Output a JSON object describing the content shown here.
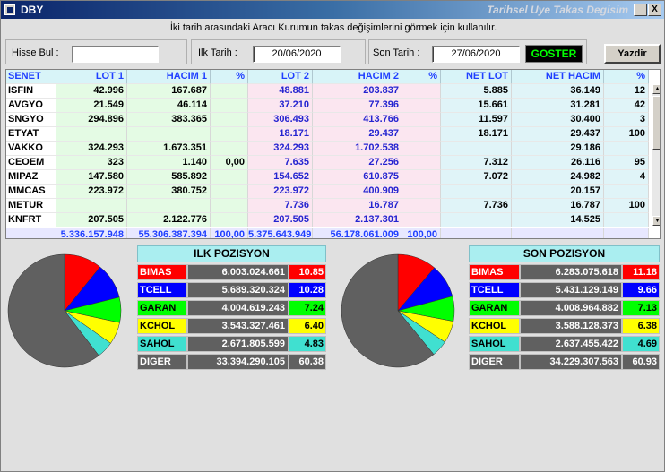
{
  "window": {
    "title": "DBY",
    "subtitle": "Tarihsel Uye Takas Degisim",
    "min_glyph": "_",
    "close_glyph": "X"
  },
  "instruction": "İki tarih arasındaki  Aracı Kurumun takas değişimlerini görmek için kullanılır.",
  "toolbar": {
    "hisse_label": "Hisse Bul :",
    "hisse_value": "",
    "ilk_label": "Ilk Tarih :",
    "ilk_value": "20/06/2020",
    "son_label": "Son Tarih :",
    "son_value": "27/06/2020",
    "goster_label": "GOSTER",
    "yazdir_label": "Yazdir"
  },
  "grid": {
    "headers": [
      "SENET",
      "LOT 1",
      "HACIM 1",
      "%",
      "LOT 2",
      "HACIM 2",
      "%",
      "NET LOT",
      "NET HACIM",
      "%"
    ],
    "rows": [
      [
        "ISFIN",
        "42.996",
        "167.687",
        "",
        "48.881",
        "203.837",
        "",
        "5.885",
        "36.149",
        "12"
      ],
      [
        "AVGYO",
        "21.549",
        "46.114",
        "",
        "37.210",
        "77.396",
        "",
        "15.661",
        "31.281",
        "42"
      ],
      [
        "SNGYO",
        "294.896",
        "383.365",
        "",
        "306.493",
        "413.766",
        "",
        "11.597",
        "30.400",
        "3"
      ],
      [
        "ETYAT",
        "",
        "",
        "",
        "18.171",
        "29.437",
        "",
        "18.171",
        "29.437",
        "100"
      ],
      [
        "VAKKO",
        "324.293",
        "1.673.351",
        "",
        "324.293",
        "1.702.538",
        "",
        "",
        "29.186",
        ""
      ],
      [
        "CEOEM",
        "323",
        "1.140",
        "0,00",
        "7.635",
        "27.256",
        "",
        "7.312",
        "26.116",
        "95"
      ],
      [
        "MIPAZ",
        "147.580",
        "585.892",
        "",
        "154.652",
        "610.875",
        "",
        "7.072",
        "24.982",
        "4"
      ],
      [
        "MMCAS",
        "223.972",
        "380.752",
        "",
        "223.972",
        "400.909",
        "",
        "",
        "20.157",
        ""
      ],
      [
        "METUR",
        "",
        "",
        "",
        "7.736",
        "16.787",
        "",
        "7.736",
        "16.787",
        "100"
      ],
      [
        "KNFRT",
        "207.505",
        "2.122.776",
        "",
        "207.505",
        "2.137.301",
        "",
        "",
        "14.525",
        ""
      ]
    ],
    "totals": [
      "",
      "5.336.157.948",
      "55.306.387.394",
      "100,00",
      "5.375.643.949",
      "56.178.061.009",
      "100,00",
      "",
      "",
      ""
    ]
  },
  "ilk_pozisyon": {
    "title": "ILK POZISYON",
    "rows": [
      {
        "name": "BIMAS",
        "value": "6.003.024.661",
        "pct": "10.85",
        "pct_num": 10.85,
        "color": "#ff0000",
        "text": "#ffffff"
      },
      {
        "name": "TCELL",
        "value": "5.689.320.324",
        "pct": "10.28",
        "pct_num": 10.28,
        "color": "#0000ff",
        "text": "#ffffff"
      },
      {
        "name": "GARAN",
        "value": "4.004.619.243",
        "pct": "7.24",
        "pct_num": 7.24,
        "color": "#00ff00",
        "text": "#000000"
      },
      {
        "name": "KCHOL",
        "value": "3.543.327.461",
        "pct": "6.40",
        "pct_num": 6.4,
        "color": "#ffff00",
        "text": "#000000"
      },
      {
        "name": "SAHOL",
        "value": "2.671.805.599",
        "pct": "4.83",
        "pct_num": 4.83,
        "color": "#40e0d0",
        "text": "#000000"
      },
      {
        "name": "DIGER",
        "value": "33.394.290.105",
        "pct": "60.38",
        "pct_num": 60.38,
        "color": "#606060",
        "text": "#ffffff"
      }
    ]
  },
  "son_pozisyon": {
    "title": "SON POZISYON",
    "rows": [
      {
        "name": "BIMAS",
        "value": "6.283.075.618",
        "pct": "11.18",
        "pct_num": 11.18,
        "color": "#ff0000",
        "text": "#ffffff"
      },
      {
        "name": "TCELL",
        "value": "5.431.129.149",
        "pct": "9.66",
        "pct_num": 9.66,
        "color": "#0000ff",
        "text": "#ffffff"
      },
      {
        "name": "GARAN",
        "value": "4.008.964.882",
        "pct": "7.13",
        "pct_num": 7.13,
        "color": "#00ff00",
        "text": "#000000"
      },
      {
        "name": "KCHOL",
        "value": "3.588.128.373",
        "pct": "6.38",
        "pct_num": 6.38,
        "color": "#ffff00",
        "text": "#000000"
      },
      {
        "name": "SAHOL",
        "value": "2.637.455.422",
        "pct": "4.69",
        "pct_num": 4.69,
        "color": "#40e0d0",
        "text": "#000000"
      },
      {
        "name": "DIGER",
        "value": "34.229.307.563",
        "pct": "60.93",
        "pct_num": 60.93,
        "color": "#606060",
        "text": "#ffffff"
      }
    ]
  },
  "chart_data": [
    {
      "type": "pie",
      "categories": [
        "BIMAS",
        "TCELL",
        "GARAN",
        "KCHOL",
        "SAHOL",
        "DIGER"
      ],
      "values": [
        10.85,
        10.28,
        7.24,
        6.4,
        4.83,
        60.38
      ]
    },
    {
      "type": "pie",
      "categories": [
        "BIMAS",
        "TCELL",
        "GARAN",
        "KCHOL",
        "SAHOL",
        "DIGER"
      ],
      "values": [
        11.18,
        9.66,
        7.13,
        6.38,
        4.69,
        60.93
      ]
    }
  ]
}
